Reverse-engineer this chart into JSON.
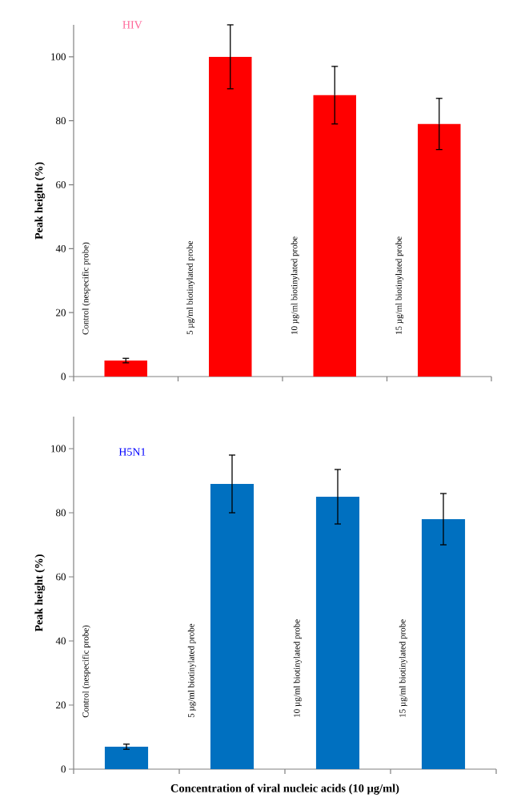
{
  "chart_data": [
    {
      "type": "bar",
      "title": "HIV",
      "ylabel": "Peak height (%)",
      "categories": [
        "Control (nespecific probe)",
        "5 µg/ml biotinylated probe",
        "10 µg/ml biotinylated probe",
        "15 µg/ml biotinylated probe"
      ],
      "values": [
        5,
        100,
        88,
        79
      ],
      "errors": [
        0.7,
        10,
        9,
        8
      ],
      "color": "#ff0000",
      "ylim": [
        0,
        110
      ],
      "yticks": [
        0,
        20,
        40,
        60,
        80,
        100
      ],
      "grid": false
    },
    {
      "type": "bar",
      "title": "H5N1",
      "ylabel": "Peak height (%)",
      "xlabel": "Concentration of viral nucleic acids (10 µg/ml)",
      "categories": [
        "Control (nespecific probe)",
        "5 µg/ml biotinylated probe",
        "10 µg/ml biotinylated probe",
        "15 µg/ml biotinylated probe"
      ],
      "values": [
        7,
        89,
        85,
        78
      ],
      "errors": [
        0.8,
        9,
        8.5,
        8
      ],
      "color": "#0070c0",
      "ylim": [
        0,
        110
      ],
      "yticks": [
        0,
        20,
        40,
        60,
        80,
        100
      ],
      "grid": false
    }
  ]
}
